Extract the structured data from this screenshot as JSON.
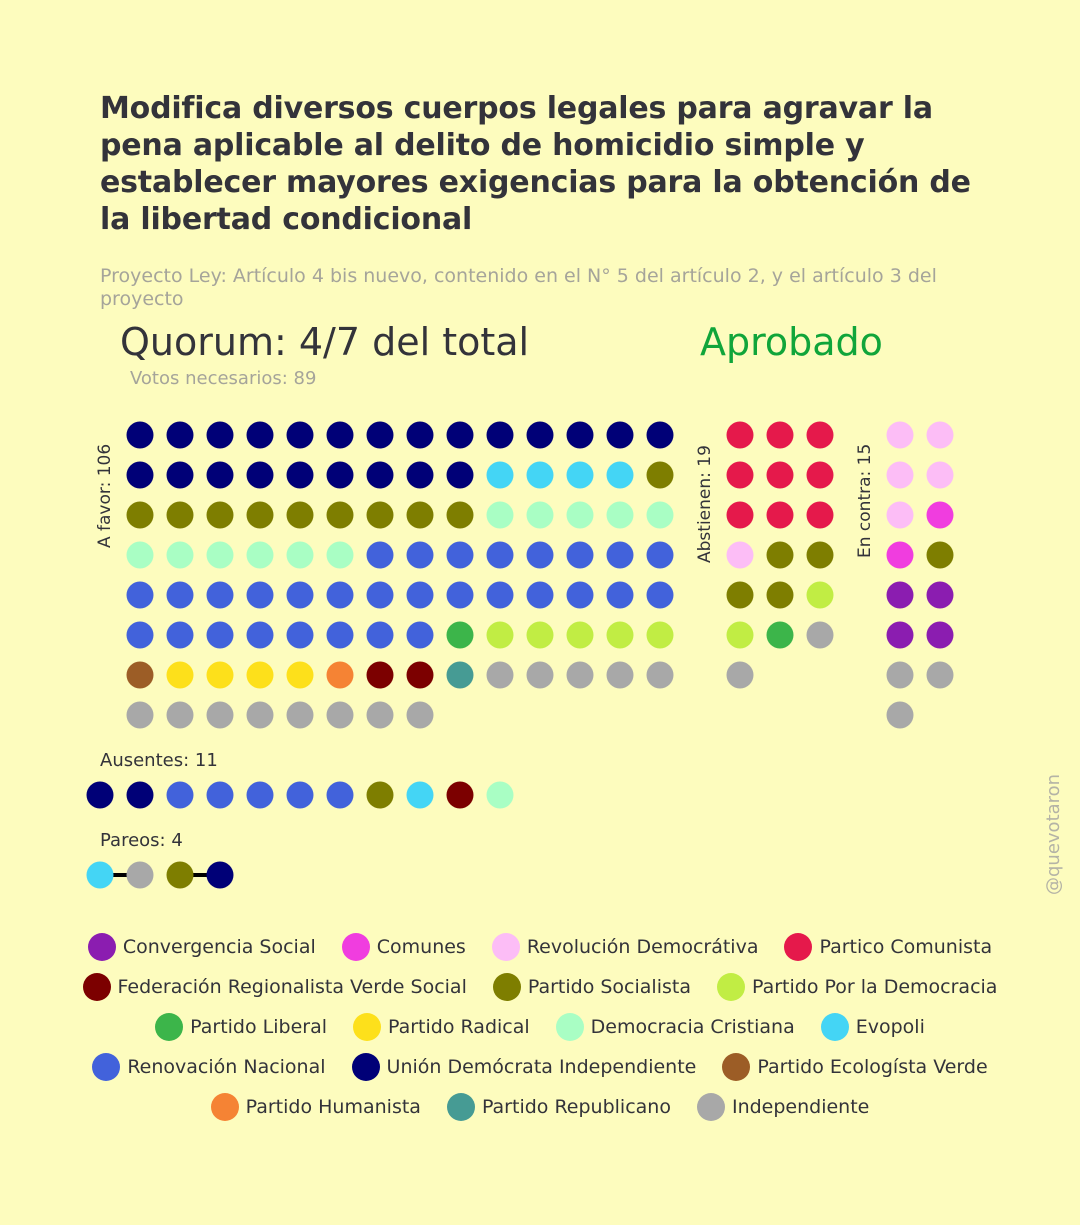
{
  "title": "Modifica diversos cuerpos legales para agravar la pena aplicable al delito de homicidio simple y establecer mayores exigencias para la obtención de la libertad condicional",
  "subtitle": "Proyecto Ley: Artículo 4 bis nuevo, contenido en el N° 5 del artículo 2, y el artículo 3 del proyecto",
  "quorum": "Quorum: 4/7 del total",
  "result": "Aprobado",
  "votes_needed": "Votos necesarios: 89",
  "labels": {
    "favor": "A favor: 106",
    "abstain": "Abstienen: 19",
    "against": "En contra: 15",
    "absent": "Ausentes: 11",
    "pairs": "Pareos: 4"
  },
  "watermark": "@quevotaron",
  "parties": [
    {
      "name": "Convergencia Social",
      "color": "#8b1db0"
    },
    {
      "name": "Comunes",
      "color": "#f03ddf"
    },
    {
      "name": "Revolución Democrátiva",
      "color": "#fcbdf6"
    },
    {
      "name": "Partico Comunista",
      "color": "#e5194b"
    },
    {
      "name": "Federación Regionalista Verde Social",
      "color": "#7c0000"
    },
    {
      "name": "Partido Socialista",
      "color": "#7e7e00"
    },
    {
      "name": "Partido Por la Democracia",
      "color": "#c1ed44"
    },
    {
      "name": "Partido Liberal",
      "color": "#3cb54a"
    },
    {
      "name": "Partido Radical",
      "color": "#fde01b"
    },
    {
      "name": "Democracia Cristiana",
      "color": "#a9fec4"
    },
    {
      "name": "Evopoli",
      "color": "#44d5f5"
    },
    {
      "name": "Renovación Nacional",
      "color": "#4262db"
    },
    {
      "name": "Unión Demócrata Independiente",
      "color": "#000077"
    },
    {
      "name": "Partido Ecologísta Verde",
      "color": "#9c5d26"
    },
    {
      "name": "Partido Humanista",
      "color": "#f58334"
    },
    {
      "name": "Partido Republicano",
      "color": "#469b94"
    },
    {
      "name": "Independiente",
      "color": "#a8a8a8"
    }
  ],
  "chart_data": {
    "type": "seat-chart",
    "title": "Modifica diversos cuerpos legales para agravar la pena aplicable al delito de homicidio simple y establecer mayores exigencias para la obtención de la libertad condicional",
    "groups": [
      {
        "name": "A favor",
        "total": 106,
        "seats": [
          {
            "party": "Unión Demócrata Independiente",
            "count": 23
          },
          {
            "party": "Evopoli",
            "count": 4
          },
          {
            "party": "Partido Socialista",
            "count": 10
          },
          {
            "party": "Democracia Cristiana",
            "count": 11
          },
          {
            "party": "Renovación Nacional",
            "count": 30
          },
          {
            "party": "Partido Liberal",
            "count": 1
          },
          {
            "party": "Partido Por la Democracia",
            "count": 5
          },
          {
            "party": "Partido Ecologísta Verde",
            "count": 1
          },
          {
            "party": "Partido Radical",
            "count": 4
          },
          {
            "party": "Partido Humanista",
            "count": 1
          },
          {
            "party": "Federación Regionalista Verde Social",
            "count": 2
          },
          {
            "party": "Partido Republicano",
            "count": 1
          },
          {
            "party": "Independiente",
            "count": 13
          }
        ]
      },
      {
        "name": "Abstienen",
        "total": 19,
        "seats": [
          {
            "party": "Partico Comunista",
            "count": 9
          },
          {
            "party": "Revolución Democrátiva",
            "count": 1
          },
          {
            "party": "Partido Socialista",
            "count": 4
          },
          {
            "party": "Partido Por la Democracia",
            "count": 2
          },
          {
            "party": "Partido Liberal",
            "count": 1
          },
          {
            "party": "Independiente",
            "count": 2
          }
        ]
      },
      {
        "name": "En contra",
        "total": 15,
        "seats": [
          {
            "party": "Revolución Democrátiva",
            "count": 5
          },
          {
            "party": "Comunes",
            "count": 2
          },
          {
            "party": "Partido Socialista",
            "count": 1
          },
          {
            "party": "Convergencia Social",
            "count": 4
          },
          {
            "party": "Independiente",
            "count": 3
          }
        ]
      },
      {
        "name": "Ausentes",
        "total": 11,
        "seats": [
          {
            "party": "Unión Demócrata Independiente",
            "count": 2
          },
          {
            "party": "Renovación Nacional",
            "count": 5
          },
          {
            "party": "Partido Socialista",
            "count": 1
          },
          {
            "party": "Evopoli",
            "count": 1
          },
          {
            "party": "Federación Regionalista Verde Social",
            "count": 1
          },
          {
            "party": "Democracia Cristiana",
            "count": 1
          }
        ]
      }
    ],
    "pairs": [
      [
        "Evopoli",
        "Independiente"
      ],
      [
        "Partido Socialista",
        "Unión Demócrata Independiente"
      ]
    ]
  }
}
